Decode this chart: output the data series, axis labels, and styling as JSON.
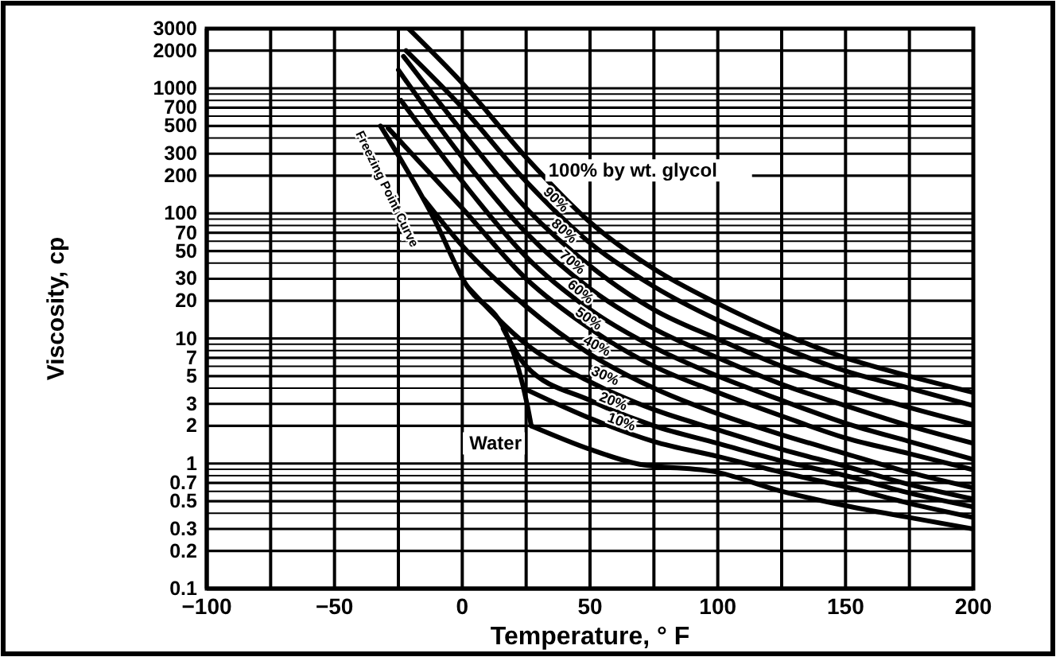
{
  "chart_data": {
    "type": "line",
    "xlabel": "Temperature, ° F",
    "ylabel": "Viscosity, cp",
    "log": "y",
    "grid": true,
    "legend": false,
    "line_style": "solid",
    "marker": "none",
    "xlim": [
      -100,
      200
    ],
    "xticks": [
      -100,
      {
        "value": -75,
        "label": null
      },
      -50,
      {
        "value": -25,
        "label": null
      },
      0,
      {
        "value": 25,
        "label": null
      },
      50,
      {
        "value": 75,
        "label": null
      },
      100,
      {
        "value": 125,
        "label": null
      },
      150,
      {
        "value": 175,
        "label": null
      },
      200
    ],
    "ylim": [
      0.1,
      3000
    ],
    "yticks": [
      0.1,
      0.2,
      0.3,
      {
        "value": 0.4,
        "label": null
      },
      0.5,
      {
        "value": 0.6,
        "label": null
      },
      0.7,
      {
        "value": 0.8,
        "label": null
      },
      {
        "value": 0.9,
        "label": null
      },
      1,
      2,
      3,
      {
        "value": 4,
        "label": null
      },
      5,
      {
        "value": 6,
        "label": null
      },
      7,
      {
        "value": 8,
        "label": null
      },
      {
        "value": 9,
        "label": null
      },
      10,
      20,
      30,
      {
        "value": 40,
        "label": null
      },
      50,
      {
        "value": 60,
        "label": null
      },
      70,
      {
        "value": 80,
        "label": null
      },
      {
        "value": 90,
        "label": null
      },
      100,
      200,
      300,
      {
        "value": 400,
        "label": null
      },
      500,
      {
        "value": 600,
        "label": null
      },
      700,
      {
        "value": 800,
        "label": null
      },
      {
        "value": 900,
        "label": null
      },
      1000,
      2000,
      3000
    ],
    "series": [
      {
        "name": "100% by wt. glycol",
        "color": "#000000",
        "x": [
          -21,
          0,
          25,
          50,
          75,
          100,
          125,
          150,
          175,
          200
        ],
        "values": [
          3000,
          1100,
          280,
          85,
          36,
          19,
          11,
          7,
          5,
          3.7
        ]
      },
      {
        "name": "90%",
        "color": "#000000",
        "x": [
          -22,
          0,
          25,
          50,
          75,
          100,
          125,
          150,
          175,
          200
        ],
        "values": [
          2000,
          700,
          180,
          58,
          26,
          14,
          8.5,
          5.5,
          4,
          2.9
        ]
      },
      {
        "name": "80%",
        "color": "#000000",
        "x": [
          -23,
          0,
          25,
          50,
          75,
          100,
          125,
          150,
          175,
          200
        ],
        "values": [
          1800,
          450,
          110,
          38,
          17,
          9.9,
          6,
          4,
          2.8,
          2.05
        ]
      },
      {
        "name": "70%",
        "color": "#000000",
        "x": [
          -25,
          0,
          25,
          50,
          75,
          100,
          125,
          150,
          175,
          200
        ],
        "values": [
          1400,
          280,
          70,
          25,
          12,
          7,
          4.3,
          2.9,
          2,
          1.45
        ]
      },
      {
        "name": "60%",
        "color": "#000000",
        "x": [
          -24,
          0,
          25,
          50,
          75,
          100,
          125,
          150,
          175,
          200
        ],
        "values": [
          800,
          180,
          45,
          17,
          8.5,
          5,
          3.2,
          2.1,
          1.5,
          1.08
        ]
      },
      {
        "name": "50%",
        "color": "#000000",
        "x": [
          -29,
          0,
          25,
          50,
          75,
          100,
          125,
          150,
          175,
          200
        ],
        "values": [
          480,
          110,
          30,
          12,
          6,
          3.7,
          2.4,
          1.6,
          1.2,
          0.89
        ]
      },
      {
        "name": "40%",
        "color": "#000000",
        "x": [
          -15,
          0,
          25,
          50,
          75,
          100,
          125,
          150,
          175,
          200
        ],
        "values": [
          130,
          55,
          18,
          7.5,
          4,
          2.5,
          1.7,
          1.2,
          0.85,
          0.64
        ]
      },
      {
        "name": "30%",
        "color": "#000000",
        "x": [
          2,
          25,
          50,
          75,
          100,
          125,
          150,
          175,
          200
        ],
        "values": [
          26,
          9,
          4.5,
          2.7,
          1.86,
          1.3,
          0.95,
          0.68,
          0.52
        ]
      },
      {
        "name": "20%",
        "color": "#000000",
        "x": [
          16,
          25,
          50,
          75,
          100,
          125,
          150,
          175,
          200
        ],
        "values": [
          12,
          6,
          3.2,
          2,
          1.45,
          1.05,
          0.8,
          0.58,
          0.45
        ]
      },
      {
        "name": "10%",
        "color": "#000000",
        "x": [
          24,
          50,
          75,
          100,
          125,
          150,
          175,
          200
        ],
        "values": [
          4,
          2.3,
          1.5,
          1.14,
          0.85,
          0.65,
          0.48,
          0.37
        ]
      },
      {
        "name": "Water",
        "color": "#000000",
        "x": [
          27,
          50,
          68,
          100,
          125,
          150,
          175,
          200
        ],
        "values": [
          2,
          1.3,
          1,
          0.85,
          0.6,
          0.46,
          0.37,
          0.3
        ]
      },
      {
        "name": "Freezing Point Curve",
        "color": "#000000",
        "x": [
          -32,
          -11,
          1,
          18,
          25.5,
          27
        ],
        "values": [
          500,
          90,
          28,
          10,
          2.9,
          2
        ]
      }
    ]
  }
}
